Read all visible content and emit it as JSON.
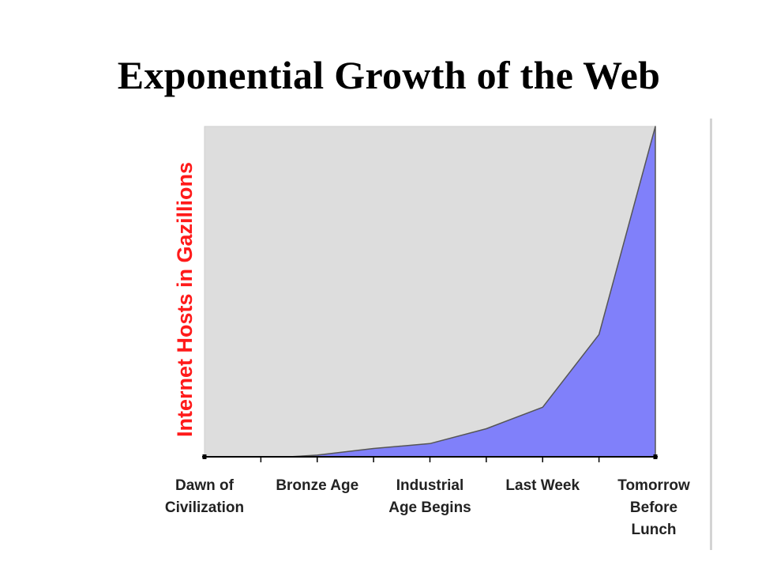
{
  "slide": {
    "title": "Exponential Growth of the Web"
  },
  "chart_data": {
    "type": "area",
    "title": "Exponential Growth of the Web",
    "ylabel": "Internet Hosts in Gazillions",
    "xlabel": "",
    "x_ticks": [
      0,
      1,
      2,
      3,
      4,
      5,
      6,
      7,
      8
    ],
    "x_labels": [
      {
        "x": 0,
        "lines": [
          "Dawn of",
          "Civilization"
        ]
      },
      {
        "x": 2,
        "lines": [
          "Bronze Age"
        ]
      },
      {
        "x": 4,
        "lines": [
          "Industrial",
          "Age Begins"
        ]
      },
      {
        "x": 6,
        "lines": [
          "Last Week"
        ]
      },
      {
        "x": 8,
        "lines": [
          "Tomorrow",
          "Before",
          "Lunch"
        ]
      }
    ],
    "x": [
      0,
      1.5,
      2,
      3,
      4,
      5,
      6,
      7,
      8
    ],
    "values": [
      0,
      0,
      0.5,
      2.5,
      4,
      8.5,
      15,
      37,
      100
    ],
    "ylim": [
      0,
      100
    ],
    "xlim": [
      0,
      8
    ],
    "grid": false,
    "colors": {
      "plot_bg": "#dddddd",
      "area_fill": "#8080fa",
      "area_stroke": "#555555",
      "ylabel": "#ff1a1a",
      "axis": "#000000"
    }
  }
}
